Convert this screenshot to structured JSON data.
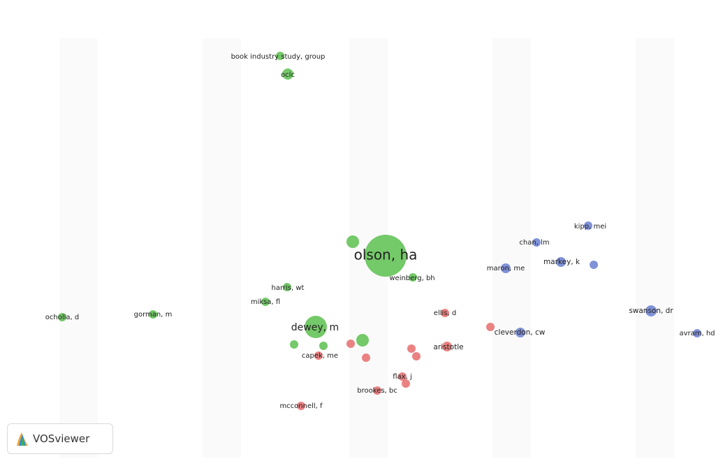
{
  "colors": {
    "green": "#5cbf4f",
    "red": "#e66c6c",
    "blue": "#6a7fd1"
  },
  "watermark": {
    "logo_icon": "vosviewer-logo-icon",
    "label": "VOSviewer"
  },
  "nodes": [
    {
      "id": "olson",
      "label": "olson, ha",
      "cluster": "green",
      "size": "xl"
    },
    {
      "id": "dewey",
      "label": "dewey, m",
      "cluster": "green",
      "size": "l"
    },
    {
      "id": "oclc",
      "label": "oclc",
      "cluster": "green",
      "size": "s"
    },
    {
      "id": "bookindustry",
      "label": "book industry study, group",
      "cluster": "green",
      "size": "s"
    },
    {
      "id": "weinberg",
      "label": "weinberg, bh",
      "cluster": "green",
      "size": "s"
    },
    {
      "id": "harris",
      "label": "harris, wt",
      "cluster": "green",
      "size": "s"
    },
    {
      "id": "miksa",
      "label": "miksa, fl",
      "cluster": "green",
      "size": "s"
    },
    {
      "id": "gorman",
      "label": "gorman, m",
      "cluster": "green",
      "size": "s"
    },
    {
      "id": "ocholla",
      "label": "ocholla, d",
      "cluster": "green",
      "size": "s"
    },
    {
      "id": "capek",
      "label": "capek, me",
      "cluster": "red",
      "size": "s"
    },
    {
      "id": "ellis",
      "label": "ellis, d",
      "cluster": "red",
      "size": "s"
    },
    {
      "id": "aristotle",
      "label": "aristotle",
      "cluster": "red",
      "size": "s"
    },
    {
      "id": "flax",
      "label": "flax, j",
      "cluster": "red",
      "size": "s"
    },
    {
      "id": "brookes",
      "label": "brookes, bc",
      "cluster": "red",
      "size": "s"
    },
    {
      "id": "mcconnell",
      "label": "mcconnell, f",
      "cluster": "red",
      "size": "s"
    },
    {
      "id": "kipp",
      "label": "kipp, mei",
      "cluster": "blue",
      "size": "s"
    },
    {
      "id": "chan",
      "label": "chan, lm",
      "cluster": "blue",
      "size": "s"
    },
    {
      "id": "markey",
      "label": "markey, k",
      "cluster": "blue",
      "size": "s"
    },
    {
      "id": "maron",
      "label": "maron, me",
      "cluster": "blue",
      "size": "s"
    },
    {
      "id": "cleverdon",
      "label": "cleverdon, cw",
      "cluster": "blue",
      "size": "s"
    },
    {
      "id": "swanson",
      "label": "swanson, dr",
      "cluster": "blue",
      "size": "s"
    },
    {
      "id": "avram",
      "label": "avram, hd",
      "cluster": "blue",
      "size": "s"
    },
    {
      "id": "g1",
      "label": "",
      "cluster": "green",
      "size": "m"
    },
    {
      "id": "g2",
      "label": "",
      "cluster": "green",
      "size": "s"
    },
    {
      "id": "g3",
      "label": "",
      "cluster": "green",
      "size": "s"
    },
    {
      "id": "g4",
      "label": "",
      "cluster": "green",
      "size": "m"
    },
    {
      "id": "r1",
      "label": "",
      "cluster": "red",
      "size": "s"
    },
    {
      "id": "r2",
      "label": "",
      "cluster": "red",
      "size": "s"
    },
    {
      "id": "r3",
      "label": "",
      "cluster": "red",
      "size": "s"
    },
    {
      "id": "r4",
      "label": "",
      "cluster": "red",
      "size": "s"
    },
    {
      "id": "r5",
      "label": "",
      "cluster": "red",
      "size": "s"
    },
    {
      "id": "r6",
      "label": "",
      "cluster": "red",
      "size": "s"
    },
    {
      "id": "b1",
      "label": "",
      "cluster": "blue",
      "size": "s"
    }
  ]
}
